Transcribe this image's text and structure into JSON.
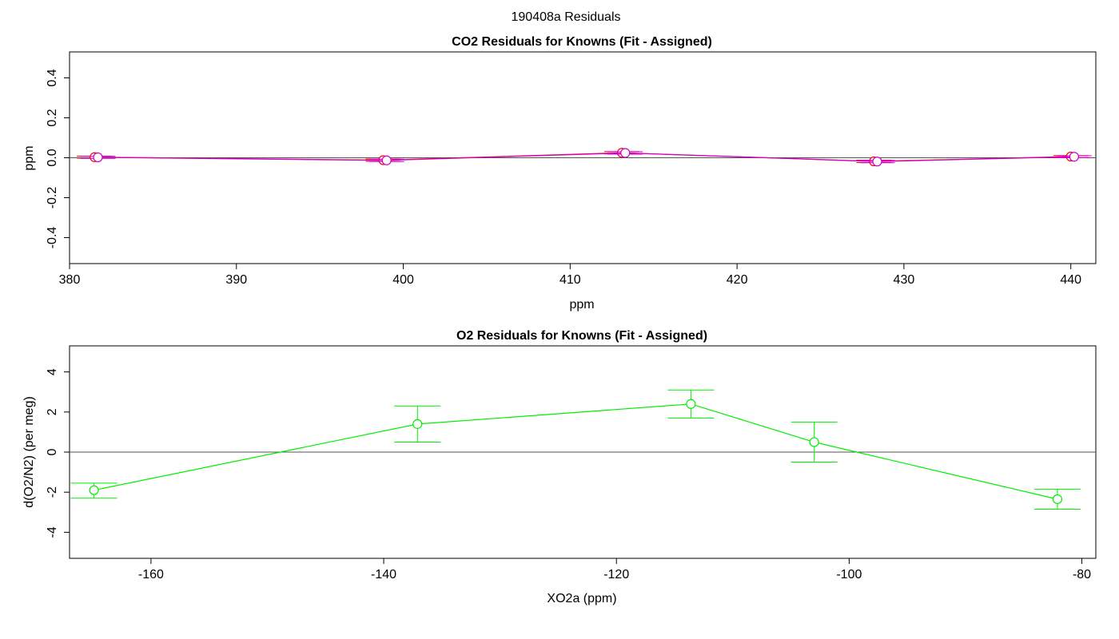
{
  "figure_title": "190408a  Residuals",
  "chart_data": [
    {
      "type": "line",
      "title": "CO2 Residuals for Knowns (Fit - Assigned)",
      "xlabel": "ppm",
      "ylabel": "ppm",
      "xlim": [
        380,
        441.5
      ],
      "ylim": [
        -0.53,
        0.53
      ],
      "xticks": [
        "380",
        "390",
        "400",
        "410",
        "420",
        "430",
        "440"
      ],
      "yticks": [
        "-0.4",
        "-0.2",
        "0.0",
        "0.2",
        "0.4"
      ],
      "grid": false,
      "reference_line": 0,
      "series": [
        {
          "color": "#ff0000",
          "marker": "open-circle",
          "x": [
            381.5,
            398.8,
            413.1,
            428.2,
            440.0
          ],
          "y": [
            0.003,
            -0.012,
            0.025,
            -0.018,
            0.006
          ],
          "error": [
            0.005,
            0.006,
            0.006,
            0.006,
            0.005
          ]
        },
        {
          "color": "#cc00cc",
          "marker": "open-circle",
          "x": [
            381.7,
            399.0,
            413.3,
            428.4,
            440.2
          ],
          "y": [
            0.002,
            -0.013,
            0.024,
            -0.019,
            0.005
          ],
          "error": [
            0.005,
            0.006,
            0.006,
            0.006,
            0.005
          ]
        }
      ]
    },
    {
      "type": "line",
      "title": "O2 Residuals for Knowns (Fit - Assigned)",
      "xlabel": "XO2a (ppm)",
      "ylabel": "d(O2/N2) (per meg)",
      "xlim": [
        -167,
        -78.8
      ],
      "ylim": [
        -5.3,
        5.3
      ],
      "xticks": [
        "-160",
        "-140",
        "-120",
        "-100",
        "-80"
      ],
      "yticks": [
        "-4",
        "-2",
        "0",
        "2",
        "4"
      ],
      "grid": false,
      "reference_line": 0,
      "series": [
        {
          "color": "#00ee00",
          "marker": "open-circle",
          "x": [
            -164.9,
            -137.1,
            -113.6,
            -103.0,
            -82.1
          ],
          "y": [
            -1.9,
            1.4,
            2.4,
            0.5,
            -2.35
          ],
          "err_low": [
            0.4,
            0.9,
            0.7,
            1.0,
            0.5
          ],
          "err_high": [
            0.35,
            0.9,
            0.7,
            1.0,
            0.5
          ]
        }
      ]
    }
  ]
}
